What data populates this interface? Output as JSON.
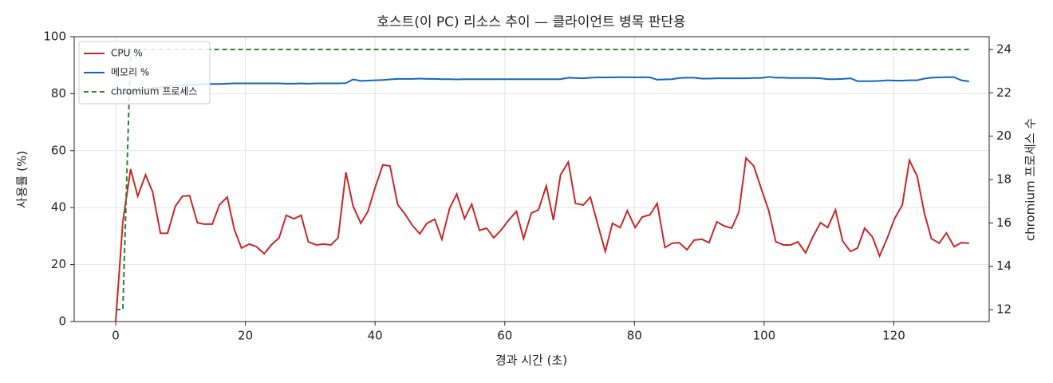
{
  "chart_data": {
    "type": "line",
    "title": "호스트(이 PC) 리소스 추이 — 클라이언트 병목 판단용",
    "x_label": "경과 시간 (초)",
    "y_label": "사용률 (%)",
    "y2_label": "chromium 프로세스 수",
    "x": [
      0,
      1.1,
      2.3,
      3.4,
      4.6,
      5.7,
      6.9,
      8.0,
      9.2,
      10.3,
      11.4,
      12.6,
      13.7,
      14.9,
      16.0,
      17.2,
      18.3,
      19.4,
      20.6,
      21.7,
      22.9,
      24.0,
      25.2,
      26.3,
      27.5,
      28.6,
      29.7,
      30.9,
      32.0,
      33.2,
      34.3,
      35.5,
      36.6,
      37.8,
      38.9,
      40.0,
      41.2,
      42.3,
      43.5,
      44.6,
      45.8,
      46.9,
      48.0,
      49.2,
      50.3,
      51.5,
      52.6,
      53.8,
      54.9,
      56.1,
      57.2,
      58.3,
      59.5,
      60.6,
      61.8,
      62.9,
      64.1,
      65.2,
      66.4,
      67.5,
      68.6,
      69.8,
      70.9,
      72.1,
      73.2,
      74.4,
      75.5,
      76.6,
      77.8,
      78.9,
      80.1,
      81.2,
      82.4,
      83.5,
      84.7,
      85.8,
      86.9,
      88.1,
      89.2,
      90.4,
      91.5,
      92.7,
      93.8,
      95.0,
      96.1,
      97.2,
      98.4,
      99.5,
      100.7,
      101.8,
      103.0,
      104.1,
      105.2,
      106.4,
      107.5,
      108.7,
      109.8,
      111.0,
      112.1,
      113.3,
      114.4,
      115.5,
      116.7,
      117.8,
      119.0,
      120.1,
      121.3,
      122.4,
      123.6,
      124.7,
      125.8,
      127.0,
      128.1,
      129.3,
      130.4,
      131.6
    ],
    "series": [
      {
        "name": "CPU %",
        "color": "#c62828",
        "dash": false,
        "values": [
          0,
          35,
          53.5,
          44,
          51.5,
          45.5,
          31,
          31,
          40.5,
          44,
          44.2,
          34.7,
          34.2,
          34.2,
          41,
          43.7,
          32.3,
          25.8,
          27.2,
          26.3,
          23.8,
          26.9,
          29.4,
          37.3,
          36.1,
          37.3,
          28,
          26.9,
          27.2,
          26.9,
          29.4,
          52.4,
          40.6,
          34.5,
          38.7,
          47,
          55,
          54.6,
          41,
          37.8,
          33.6,
          30.8,
          34.5,
          35.9,
          28.9,
          39.8,
          44.8,
          36.1,
          41.2,
          32,
          32.8,
          29.4,
          32.3,
          35.6,
          38.7,
          29.1,
          38.1,
          39.2,
          47.6,
          35.6,
          51.5,
          56,
          41.5,
          40.9,
          43.7,
          33.6,
          24.6,
          34.5,
          33,
          38.9,
          33,
          36.7,
          37.5,
          41.5,
          26,
          27.5,
          27.7,
          25.2,
          28.6,
          28.9,
          27.7,
          35,
          33.6,
          32.8,
          38.4,
          57.4,
          54.6,
          47,
          39,
          28,
          26.9,
          26.9,
          28,
          24.1,
          29.7,
          34.7,
          33,
          39.2,
          28.3,
          24.6,
          25.8,
          32.8,
          29.7,
          23,
          29.4,
          36.1,
          40.9,
          56.6,
          51,
          38.1,
          29.1,
          27.5,
          31.1,
          26.3,
          27.7,
          27.5
        ]
      },
      {
        "name": "메모리 %",
        "color": "#1565c0",
        "dash": false,
        "values": [
          79.8,
          80.1,
          80.4,
          81,
          81.6,
          82,
          82.3,
          82.6,
          82.8,
          83,
          83.1,
          83.2,
          83.3,
          83.4,
          83.4,
          83.5,
          83.6,
          83.6,
          83.6,
          83.6,
          83.6,
          83.6,
          83.6,
          83.5,
          83.5,
          83.6,
          83.5,
          83.6,
          83.6,
          83.6,
          83.6,
          83.7,
          85,
          84.5,
          84.6,
          84.7,
          84.8,
          85,
          85.2,
          85.2,
          85.2,
          85.3,
          85.2,
          85.2,
          85.1,
          85.1,
          85,
          85.1,
          85.1,
          85.1,
          85.1,
          85.1,
          85.1,
          85.1,
          85.1,
          85.1,
          85.1,
          85.1,
          85.1,
          85.1,
          85.1,
          85.6,
          85.5,
          85.4,
          85.6,
          85.7,
          85.7,
          85.7,
          85.8,
          85.8,
          85.7,
          85.8,
          85.7,
          84.9,
          85,
          85.1,
          85.5,
          85.6,
          85.6,
          85.3,
          85.3,
          85.4,
          85.4,
          85.4,
          85.4,
          85.4,
          85.5,
          85.5,
          85.9,
          85.6,
          85.6,
          85.5,
          85.5,
          85.5,
          85.5,
          85.4,
          85.1,
          85.1,
          85.2,
          85.4,
          84.4,
          84.4,
          84.4,
          84.5,
          84.7,
          84.6,
          84.6,
          84.7,
          84.7,
          85.3,
          85.6,
          85.7,
          85.8,
          85.8,
          84.7,
          84.3
        ]
      },
      {
        "name": "chromium 프로세스",
        "color": "#2e7d32",
        "dash": true,
        "axis": "y2",
        "values": [
          12,
          12,
          24,
          24,
          24,
          24,
          24,
          24,
          24,
          24,
          24,
          24,
          24,
          24,
          24,
          24,
          24,
          24,
          24,
          24,
          24,
          24,
          24,
          24,
          24,
          24,
          24,
          24,
          24,
          24,
          24,
          24,
          24,
          24,
          24,
          24,
          24,
          24,
          24,
          24,
          24,
          24,
          24,
          24,
          24,
          24,
          24,
          24,
          24,
          24,
          24,
          24,
          24,
          24,
          24,
          24,
          24,
          24,
          24,
          24,
          24,
          24,
          24,
          24,
          24,
          24,
          24,
          24,
          24,
          24,
          24,
          24,
          24,
          24,
          24,
          24,
          24,
          24,
          24,
          24,
          24,
          24,
          24,
          24,
          24,
          24,
          24,
          24,
          24,
          24,
          24,
          24,
          24,
          24,
          24,
          24,
          24,
          24,
          24,
          24,
          24,
          24,
          24,
          24,
          24,
          24,
          24,
          24,
          24,
          24,
          24,
          24,
          24,
          24,
          24,
          24
        ]
      }
    ],
    "xlim": [
      -6.4,
      134.7
    ],
    "ylim": [
      0,
      100
    ],
    "y2lim": [
      11.45,
      24.59
    ],
    "xticks": [
      0,
      20,
      40,
      60,
      80,
      100,
      120
    ],
    "yticks": [
      0,
      20,
      40,
      60,
      80,
      100
    ],
    "y2ticks": [
      12,
      14,
      16,
      18,
      20,
      22,
      24
    ],
    "grid": true,
    "legend": "upper-left"
  }
}
